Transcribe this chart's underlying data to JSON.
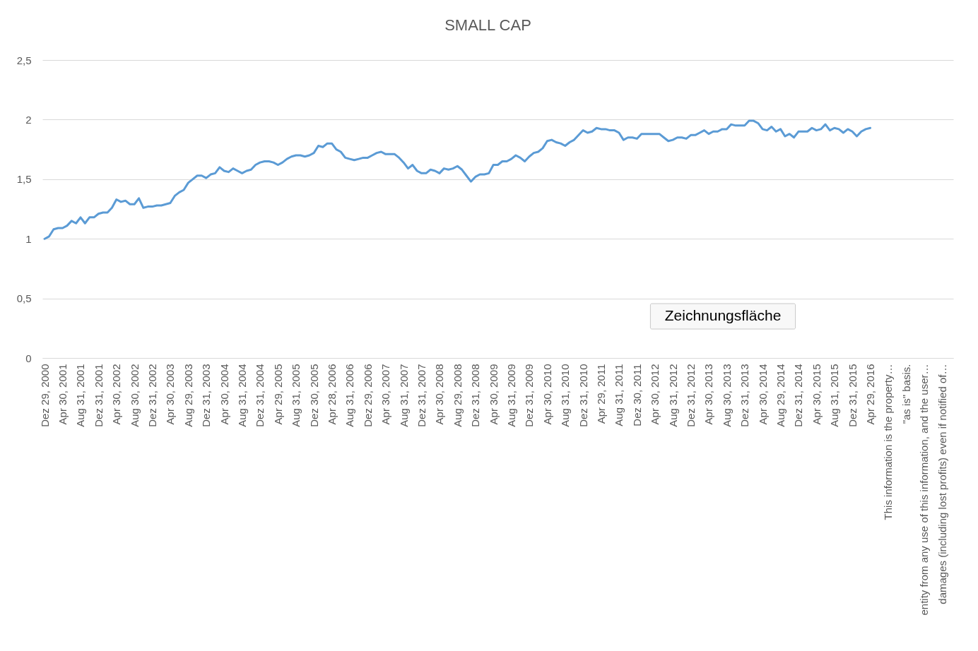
{
  "chart_data": {
    "type": "line",
    "title": "SMALL CAP",
    "categories": [
      "Dez 29, 2000",
      null,
      null,
      null,
      "Apr 30, 2001",
      null,
      null,
      null,
      "Aug 31, 2001",
      null,
      null,
      null,
      "Dez 31, 2001",
      null,
      null,
      null,
      "Apr 30, 2002",
      null,
      null,
      null,
      "Aug 30, 2002",
      null,
      null,
      null,
      "Dez 31, 2002",
      null,
      null,
      null,
      "Apr 30, 2003",
      null,
      null,
      null,
      "Aug 29, 2003",
      null,
      null,
      null,
      "Dez 31, 2003",
      null,
      null,
      null,
      "Apr 30, 2004",
      null,
      null,
      null,
      "Aug 31, 2004",
      null,
      null,
      null,
      "Dez 31, 2004",
      null,
      null,
      null,
      "Apr 29, 2005",
      null,
      null,
      null,
      "Aug 31, 2005",
      null,
      null,
      null,
      "Dez 30, 2005",
      null,
      null,
      null,
      "Apr 28, 2006",
      null,
      null,
      null,
      "Aug 31, 2006",
      null,
      null,
      null,
      "Dez 29, 2006",
      null,
      null,
      null,
      "Apr 30, 2007",
      null,
      null,
      null,
      "Aug 31, 2007",
      null,
      null,
      null,
      "Dez 31, 2007",
      null,
      null,
      null,
      "Apr 30, 2008",
      null,
      null,
      null,
      "Aug 29, 2008",
      null,
      null,
      null,
      "Dez 31, 2008",
      null,
      null,
      null,
      "Apr 30, 2009",
      null,
      null,
      null,
      "Aug 31, 2009",
      null,
      null,
      null,
      "Dez 31, 2009",
      null,
      null,
      null,
      "Apr 30, 2010",
      null,
      null,
      null,
      "Aug 31, 2010",
      null,
      null,
      null,
      "Dez 31, 2010",
      null,
      null,
      null,
      "Apr 29, 2011",
      null,
      null,
      null,
      "Aug 31, 2011",
      null,
      null,
      null,
      "Dez 30, 2011",
      null,
      null,
      null,
      "Apr 30, 2012",
      null,
      null,
      null,
      "Aug 31, 2012",
      null,
      null,
      null,
      "Dez 31, 2012",
      null,
      null,
      null,
      "Apr 30, 2013",
      null,
      null,
      null,
      "Aug 30, 2013",
      null,
      null,
      null,
      "Dez 31, 2013",
      null,
      null,
      null,
      "Apr 30, 2014",
      null,
      null,
      null,
      "Aug 29, 2014",
      null,
      null,
      null,
      "Dez 31, 2014",
      null,
      null,
      null,
      "Apr 30, 2015",
      null,
      null,
      null,
      "Aug 31, 2015",
      null,
      null,
      null,
      "Dez 31, 2015",
      null,
      null,
      null,
      "Apr 29, 2016",
      null,
      null,
      null,
      "This information is the property…",
      null,
      null,
      null,
      "\"as is\" basis.",
      null,
      null,
      null,
      "entity from any use of this information, and the user…",
      null,
      null,
      null,
      "damages (including lost profits) even if notified of…",
      null,
      null
    ],
    "series": [
      {
        "color": "#5b9bd5",
        "values": [
          1.0,
          1.02,
          1.08,
          1.09,
          1.09,
          1.11,
          1.15,
          1.13,
          1.18,
          1.13,
          1.18,
          1.18,
          1.21,
          1.22,
          1.22,
          1.26,
          1.33,
          1.31,
          1.32,
          1.29,
          1.29,
          1.34,
          1.26,
          1.27,
          1.27,
          1.28,
          1.28,
          1.29,
          1.3,
          1.36,
          1.39,
          1.41,
          1.47,
          1.5,
          1.53,
          1.53,
          1.51,
          1.54,
          1.55,
          1.6,
          1.57,
          1.56,
          1.59,
          1.57,
          1.55,
          1.57,
          1.58,
          1.62,
          1.64,
          1.65,
          1.65,
          1.64,
          1.62,
          1.64,
          1.67,
          1.69,
          1.7,
          1.7,
          1.69,
          1.7,
          1.72,
          1.78,
          1.77,
          1.8,
          1.8,
          1.75,
          1.73,
          1.68,
          1.67,
          1.66,
          1.67,
          1.68,
          1.68,
          1.7,
          1.72,
          1.73,
          1.71,
          1.71,
          1.71,
          1.68,
          1.64,
          1.59,
          1.62,
          1.57,
          1.55,
          1.55,
          1.58,
          1.57,
          1.55,
          1.59,
          1.58,
          1.59,
          1.61,
          1.58,
          1.53,
          1.48,
          1.52,
          1.54,
          1.54,
          1.55,
          1.62,
          1.62,
          1.65,
          1.65,
          1.67,
          1.7,
          1.68,
          1.65,
          1.69,
          1.72,
          1.73,
          1.76,
          1.82,
          1.83,
          1.81,
          1.8,
          1.78,
          1.81,
          1.83,
          1.87,
          1.91,
          1.89,
          1.9,
          1.93,
          1.92,
          1.92,
          1.91,
          1.91,
          1.89,
          1.83,
          1.85,
          1.85,
          1.84,
          1.88,
          1.88,
          1.88,
          1.88,
          1.88,
          1.85,
          1.82,
          1.83,
          1.85,
          1.85,
          1.84,
          1.87,
          1.87,
          1.89,
          1.91,
          1.88,
          1.9,
          1.9,
          1.92,
          1.92,
          1.96,
          1.95,
          1.95,
          1.95,
          1.99,
          1.99,
          1.97,
          1.92,
          1.91,
          1.94,
          1.9,
          1.92,
          1.86,
          1.88,
          1.85,
          1.9,
          1.9,
          1.9,
          1.93,
          1.91,
          1.92,
          1.96,
          1.91,
          1.93,
          1.92,
          1.89,
          1.92,
          1.9,
          1.86,
          1.9,
          1.92,
          1.93,
          null,
          null,
          null,
          null,
          null,
          null,
          null,
          null,
          null,
          null,
          null,
          null,
          null,
          null,
          null,
          null,
          null,
          null
        ]
      }
    ],
    "ylim": [
      0,
      2.5
    ],
    "yticks": [
      0,
      {
        "value": 0.5,
        "label": "0,5"
      },
      1,
      {
        "value": 1.5,
        "label": "1,5"
      },
      2,
      {
        "value": 2.5,
        "label": "2,5"
      }
    ],
    "grid": "y",
    "marker": "none",
    "line_style": "solid",
    "annotations": [
      "Zeichnungsfläche"
    ]
  }
}
